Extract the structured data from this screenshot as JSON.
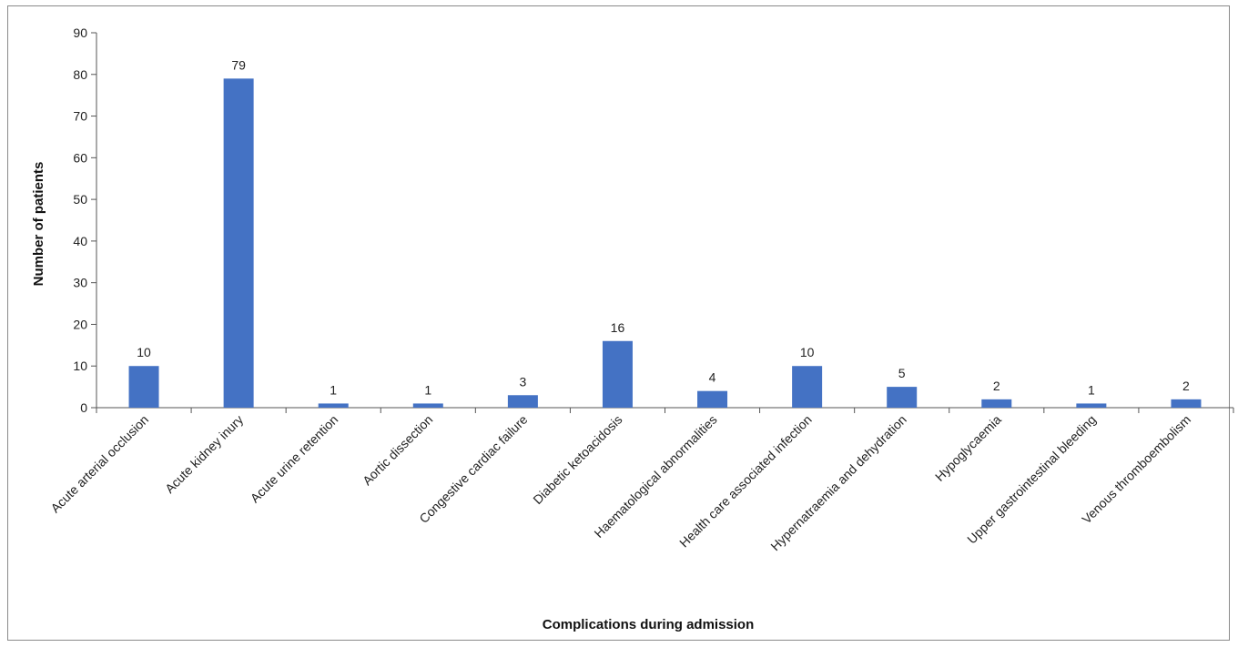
{
  "chart_data": {
    "type": "bar",
    "title": "",
    "xlabel": "Complications during admission",
    "ylabel": "Number of patients",
    "ylim": [
      0,
      90
    ],
    "yticks": [
      0,
      10,
      20,
      30,
      40,
      50,
      60,
      70,
      80,
      90
    ],
    "grid": false,
    "legend": "none",
    "bar_color": "#4472C4",
    "categories": [
      "Acute arterial occlusion",
      "Acute kidney inury",
      "Acute urine retention",
      "Aortic dissection",
      "Congestive cardiac failure",
      "Diabetic ketoacidosis",
      "Haematological abnormalities",
      "Health care associated infection",
      "Hypernatraemia and dehydration",
      "Hypoglycaemia",
      "Upper gastrointestinal bleeding",
      "Venous thromboembolism"
    ],
    "values": [
      10,
      79,
      1,
      1,
      3,
      16,
      4,
      10,
      5,
      2,
      1,
      2
    ]
  }
}
